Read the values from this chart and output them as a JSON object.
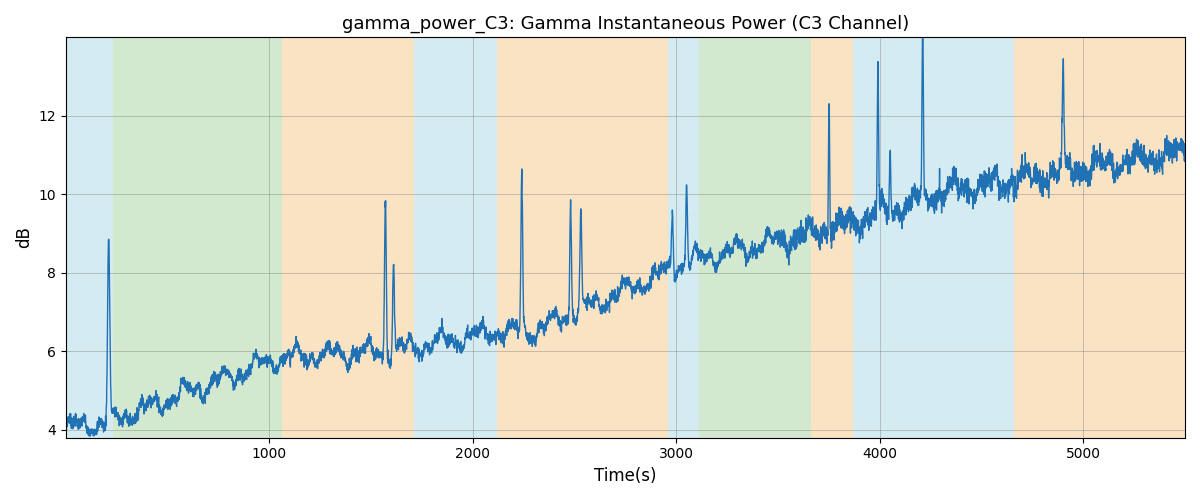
{
  "title": "gamma_power_C3: Gamma Instantaneous Power (C3 Channel)",
  "xlabel": "Time(s)",
  "ylabel": "dB",
  "xlim": [
    0,
    5500
  ],
  "ylim": [
    3.8,
    14.0
  ],
  "yticks": [
    4,
    6,
    8,
    10,
    12
  ],
  "xticks": [
    1000,
    2000,
    3000,
    4000,
    5000
  ],
  "line_color": "#2171b5",
  "line_width": 1.0,
  "background_bands": [
    {
      "xmin": 0,
      "xmax": 230,
      "color": "#add8e6",
      "alpha": 0.5
    },
    {
      "xmin": 230,
      "xmax": 1060,
      "color": "#a8d4a0",
      "alpha": 0.5
    },
    {
      "xmin": 1060,
      "xmax": 1710,
      "color": "#f5c888",
      "alpha": 0.5
    },
    {
      "xmin": 1710,
      "xmax": 2120,
      "color": "#add8e6",
      "alpha": 0.5
    },
    {
      "xmin": 2120,
      "xmax": 2960,
      "color": "#f5c888",
      "alpha": 0.5
    },
    {
      "xmin": 2960,
      "xmax": 3110,
      "color": "#add8e6",
      "alpha": 0.5
    },
    {
      "xmin": 3110,
      "xmax": 3660,
      "color": "#a8d4a0",
      "alpha": 0.5
    },
    {
      "xmin": 3660,
      "xmax": 3870,
      "color": "#f5c888",
      "alpha": 0.5
    },
    {
      "xmin": 3870,
      "xmax": 4660,
      "color": "#add8e6",
      "alpha": 0.5
    },
    {
      "xmin": 4660,
      "xmax": 5500,
      "color": "#f5c888",
      "alpha": 0.5
    }
  ],
  "grid": true,
  "title_fontsize": 13,
  "label_fontsize": 12
}
